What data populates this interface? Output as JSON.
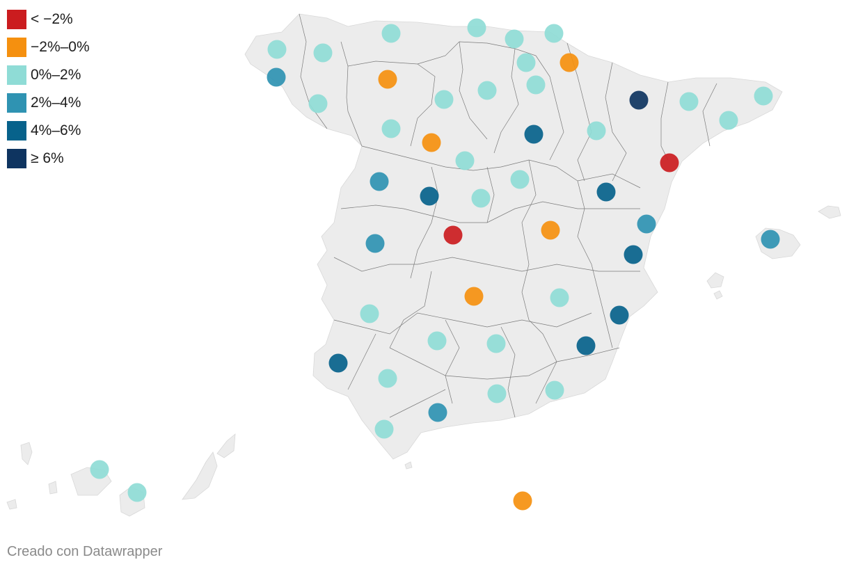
{
  "legend": {
    "items": [
      {
        "label": "< −2%",
        "color": "#cb1c1f"
      },
      {
        "label": "−2%–0%",
        "color": "#f5900f"
      },
      {
        "label": "0%–2%",
        "color": "#8fdcd6"
      },
      {
        "label": "2%–4%",
        "color": "#2f93b2"
      },
      {
        "label": "4%–6%",
        "color": "#07628b"
      },
      {
        "label": "≥ 6%",
        "color": "#0e3460"
      }
    ]
  },
  "credit": "Creado con Datawrapper",
  "map_style": {
    "land": "#ececec",
    "border": "#7a7a7a"
  }
}
